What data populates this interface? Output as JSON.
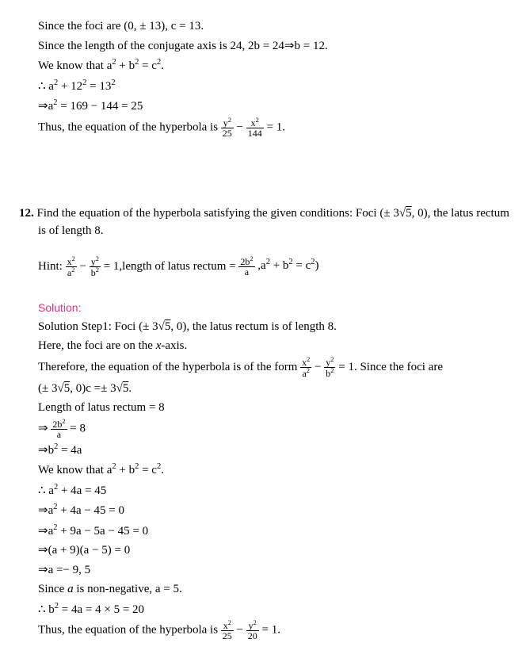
{
  "solution11": {
    "l1a": "Since the foci are ",
    "l1b": "(0, ± 13), c = 13.",
    "l2a": "Since the length of the conjugate axis is ",
    "l2b": "24, 2b = 24⇒b = 12.",
    "l3a": "We know that ",
    "l3b": "a",
    "l3c": " + b",
    "l3d": " = c",
    "l3e": ".",
    "l4": "∴ a",
    "l4b": " + 12",
    "l4c": " = 13",
    "l5a": "⇒a",
    "l5b": " = 169 − 144 = 25",
    "l6": "Thus, the equation of the hyperbola is ",
    "eq_n1": "y",
    "eq_d1": "25",
    "eq_n2": "x",
    "eq_d2": "144",
    "eq_end": " = 1."
  },
  "q12": {
    "num": "12.",
    "text1": " Find the equation of the hyperbola satisfying the given conditions: Foci ",
    "foci": "(± 3",
    "sqrt5": "5",
    "foci_end": ", 0),",
    "text2": " the latus rectum is of length ",
    "eight": "8.",
    "hint_label": "Hint: ",
    "hint_n1": "x",
    "hint_d1": "a",
    "hint_n2": "y",
    "hint_d2": "b",
    "hint_mid": " = 1,length of latus rectum = ",
    "hint_lr_n": "2b",
    "hint_lr_d": "a",
    "hint_end": ",a",
    "hint_end2": " + b",
    "hint_end3": " = c",
    "hint_end4": ")",
    "sol_label": "Solution:",
    "s1a": "Solution Step1: Foci ",
    "s1b": "(± 3",
    "s1c": ", 0),",
    "s1d": " the latus rectum is of length ",
    "s1e": "8.",
    "s2a": "Here, the foci are on the ",
    "s2b": "x",
    "s2c": "-axis.",
    "s3a": "Therefore, the equation of the hyperbola is of the form",
    "s3_eq_end": " = 1.",
    "s3b": " Since the foci are",
    "s4a": "(± 3",
    "s4b": ", 0)c =± 3",
    "s4c": ".",
    "s5": "Length of latus rectum ",
    "s5b": "= 8",
    "s6_n": "2b",
    "s6_d": "a",
    "s6_end": " = 8",
    "s7a": "⇒b",
    "s7b": " = 4a",
    "s8a": "We know that ",
    "s8b": "a",
    "s8c": " + b",
    "s8d": " = c",
    "s8e": ".",
    "s9": "∴ a",
    "s9b": " + 4a = 45",
    "s10a": "⇒a",
    "s10b": " + 4a − 45 = 0",
    "s11a": "⇒a",
    "s11b": " + 9a − 5a − 45 = 0",
    "s12": "⇒(a + 9)(a − 5) = 0",
    "s13": "⇒a =− 9, 5",
    "s14a": "Since ",
    "s14b": "a",
    "s14c": " is non-negative, ",
    "s14d": "a = 5.",
    "s15": "∴ b",
    "s15b": " = 4a = 4 × 5 = 20",
    "s16": "Thus, the equation of the hyperbola is ",
    "s16_n1": "x",
    "s16_d1": "25",
    "s16_n2": "y",
    "s16_d2": "20",
    "s16_end": " = 1."
  }
}
